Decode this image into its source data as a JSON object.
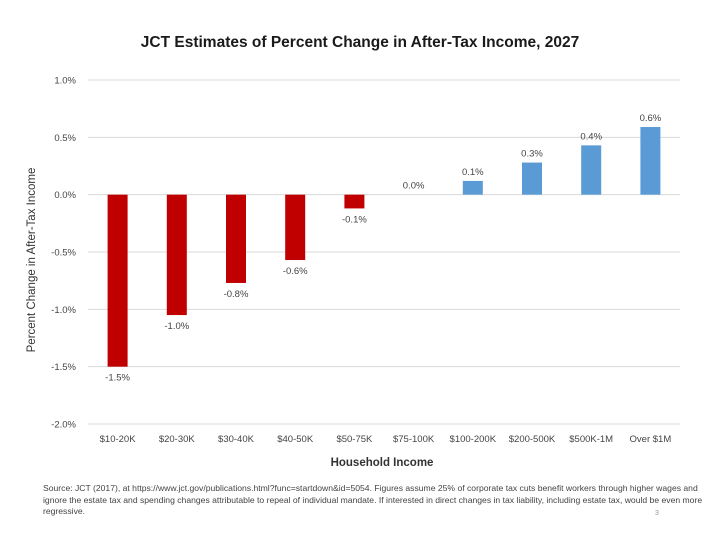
{
  "chart_data": {
    "type": "bar",
    "title": "JCT Estimates of Percent Change in After-Tax Income, 2027",
    "xlabel": "Household Income",
    "ylabel": "Percent Change in After-Tax Income",
    "categories": [
      "$10-20K",
      "$20-30K",
      "$30-40K",
      "$40-50K",
      "$50-75K",
      "$75-100K",
      "$100-200K",
      "$200-500K",
      "$500K-1M",
      "Over $1M"
    ],
    "values": [
      -1.5,
      -1.05,
      -0.77,
      -0.57,
      -0.12,
      0.0,
      0.12,
      0.28,
      0.43,
      0.59
    ],
    "data_labels": [
      "-1.5%",
      "-1.0%",
      "-0.8%",
      "-0.6%",
      "-0.1%",
      "0.0%",
      "0.1%",
      "0.3%",
      "0.4%",
      "0.6%"
    ],
    "ylim": [
      -2.0,
      1.0
    ],
    "yticks": [
      1.0,
      0.5,
      0.0,
      -0.5,
      -1.0,
      -1.5,
      -2.0
    ],
    "ytick_labels": [
      "1.0%",
      "0.5%",
      "0.0%",
      "-0.5%",
      "-1.0%",
      "-1.5%",
      "-2.0%"
    ],
    "gridlines": true,
    "legend": "none",
    "colors": {
      "negative": "#c00000",
      "positive": "#5b9bd5",
      "grid": "#d9d9d9"
    }
  },
  "source_note": "Source: JCT (2017), at https://www.jct.gov/publications.html?func=startdown&id=5054.  Figures assume 25% of corporate tax cuts benefit workers through higher wages and ignore the estate tax and spending changes attributable to repeal of individual mandate. If interested in direct changes in tax liability, including estate tax, would be even more regressive.",
  "page_number": "3"
}
